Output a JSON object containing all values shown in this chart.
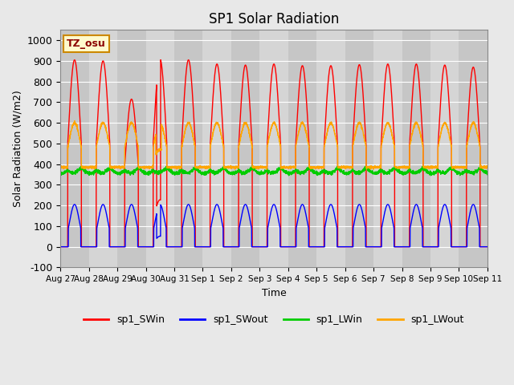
{
  "title": "SP1 Solar Radiation",
  "xlabel": "Time",
  "ylabel": "Solar Radiation (W/m2)",
  "ylim": [
    -100,
    1050
  ],
  "background_color": "#e8e8e8",
  "plot_bg_color": "#d8d8d8",
  "colors": {
    "SWin": "#ff0000",
    "SWout": "#0000ff",
    "LWin": "#00cc00",
    "LWout": "#ffa500"
  },
  "legend_labels": [
    "sp1_SWin",
    "sp1_SWout",
    "sp1_LWin",
    "sp1_LWout"
  ],
  "tz_label": "TZ_osu",
  "x_tick_labels": [
    "Aug 27",
    "Aug 28",
    "Aug 29",
    "Aug 30",
    "Aug 31",
    "Sep 1",
    "Sep 2",
    "Sep 3",
    "Sep 4",
    "Sep 5",
    "Sep 6",
    "Sep 7",
    "Sep 8",
    "Sep 9",
    "Sep 10",
    "Sep 11"
  ],
  "yticks": [
    -100,
    0,
    100,
    200,
    300,
    400,
    500,
    600,
    700,
    800,
    900,
    1000
  ],
  "num_days": 15,
  "SWin_peaks": [
    905,
    900,
    715,
    910,
    905,
    885,
    880,
    885,
    877,
    877,
    882,
    885,
    885,
    880,
    870
  ],
  "SWout_peak": 205,
  "LWin_base": 375,
  "LWout_base": 385,
  "LWout_day_peak": 600
}
